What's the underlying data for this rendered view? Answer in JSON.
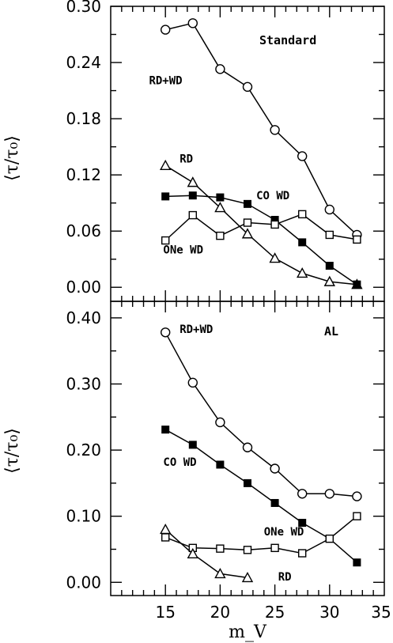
{
  "chart_data": [
    {
      "type": "line",
      "panel_label": "Standard",
      "ylabel": "⟨τ/τ₀⟩",
      "xlim": [
        10,
        35
      ],
      "ylim": [
        -0.015,
        0.3
      ],
      "y_ticks": [
        "0.00",
        "0.06",
        "0.12",
        "0.18",
        "0.24",
        "0.30"
      ],
      "y_tick_values": [
        0,
        0.06,
        0.12,
        0.18,
        0.24,
        0.3
      ],
      "x_ticks": [
        "15",
        "20",
        "25",
        "30",
        "35"
      ],
      "x_tick_values": [
        15,
        20,
        25,
        30,
        35
      ],
      "x": [
        15,
        17.5,
        20,
        22.5,
        25,
        27.5,
        30,
        32.5
      ],
      "series": [
        {
          "name": "RD+WD",
          "marker": "circle",
          "values": [
            0.275,
            0.282,
            0.233,
            0.214,
            0.168,
            0.14,
            0.083,
            0.056
          ]
        },
        {
          "name": "RD",
          "marker": "triangle",
          "values": [
            0.13,
            0.112,
            0.085,
            0.057,
            0.031,
            0.015,
            0.006,
            0.003
          ]
        },
        {
          "name": "CO WD",
          "marker": "filled-square",
          "values": [
            0.097,
            0.098,
            0.096,
            0.089,
            0.072,
            0.048,
            0.023,
            0.003
          ]
        },
        {
          "name": "ONe WD",
          "marker": "square",
          "values": [
            0.05,
            0.077,
            0.055,
            0.069,
            0.067,
            0.078,
            0.056,
            0.051
          ]
        }
      ],
      "series_label_positions_data": {
        "RD+WD": [
          13.5,
          0.217
        ],
        "RD": [
          16.3,
          0.133
        ],
        "CO WD": [
          23.3,
          0.094
        ],
        "ONe WD": [
          14.8,
          0.036
        ]
      }
    },
    {
      "type": "line",
      "panel_label": "AL",
      "xlabel": "m_V",
      "ylabel": "⟨τ/τ₀⟩",
      "xlim": [
        10,
        35
      ],
      "ylim": [
        -0.02,
        0.425
      ],
      "y_ticks": [
        "0.00",
        "0.10",
        "0.20",
        "0.30",
        "0.40"
      ],
      "y_tick_values": [
        0,
        0.1,
        0.2,
        0.3,
        0.4
      ],
      "x_ticks": [
        "15",
        "20",
        "25",
        "30",
        "35"
      ],
      "x_tick_values": [
        15,
        20,
        25,
        30,
        35
      ],
      "x": [
        15,
        17.5,
        20,
        22.5,
        25,
        27.5,
        30,
        32.5
      ],
      "series": [
        {
          "name": "RD+WD",
          "marker": "circle",
          "values": [
            0.378,
            0.302,
            0.242,
            0.204,
            0.172,
            0.134,
            0.134,
            0.13
          ]
        },
        {
          "name": "CO WD",
          "marker": "filled-square",
          "values": [
            0.231,
            0.208,
            0.178,
            0.15,
            0.12,
            0.09,
            0.066,
            0.03
          ]
        },
        {
          "name": "ONe WD",
          "marker": "square",
          "values": [
            0.068,
            0.052,
            0.051,
            0.049,
            0.052,
            0.044,
            0.066,
            0.1
          ]
        },
        {
          "name": "RD",
          "marker": "triangle",
          "x": [
            15,
            17.5,
            20,
            22.5
          ],
          "values": [
            0.08,
            0.043,
            0.013,
            0.007
          ]
        }
      ],
      "series_label_positions_data": {
        "RD+WD": [
          16.3,
          0.377
        ],
        "CO WD": [
          14.8,
          0.176
        ],
        "ONe WD": [
          24.0,
          0.071
        ],
        "RD": [
          25.3,
          0.003
        ]
      }
    }
  ]
}
